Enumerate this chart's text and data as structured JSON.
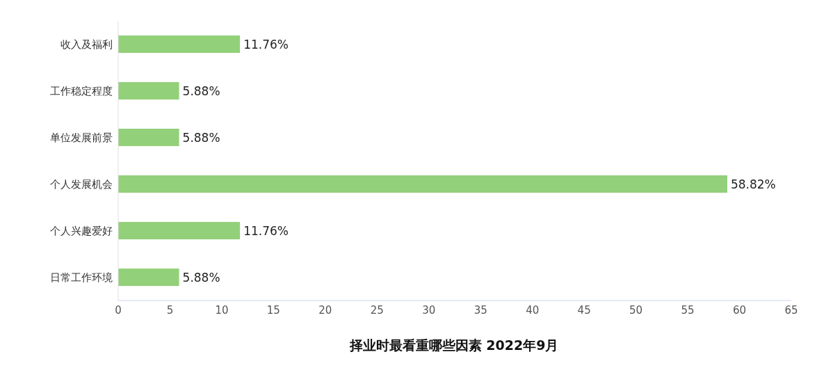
{
  "chart_data": {
    "type": "bar",
    "orientation": "horizontal",
    "title": "择业时最看重哪些因素 2022年9月",
    "categories": [
      "收入及福利",
      "工作稳定程度",
      "单位发展前景",
      "个人发展机会",
      "个人兴趣爱好",
      "日常工作环境"
    ],
    "values": [
      11.76,
      5.88,
      5.88,
      58.82,
      11.76,
      5.88
    ],
    "value_labels": [
      "11.76%",
      "5.88%",
      "5.88%",
      "58.82%",
      "11.76%",
      "5.88%"
    ],
    "color": "#93d07a",
    "xlim": [
      0,
      65
    ],
    "xticks": [
      0,
      5,
      10,
      15,
      20,
      25,
      30,
      35,
      40,
      45,
      50,
      55,
      60,
      65
    ]
  }
}
